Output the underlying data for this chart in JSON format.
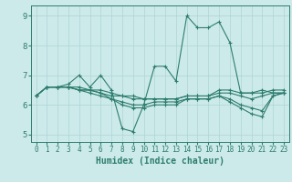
{
  "title": "",
  "xlabel": "Humidex (Indice chaleur)",
  "bg_color": "#cceaea",
  "line_color": "#2e7d6e",
  "grid_color": "#aed4d4",
  "xlim": [
    -0.5,
    23.5
  ],
  "ylim": [
    4.75,
    9.35
  ],
  "yticks": [
    5,
    6,
    7,
    8,
    9
  ],
  "xticks": [
    0,
    1,
    2,
    3,
    4,
    5,
    6,
    7,
    8,
    9,
    10,
    11,
    12,
    13,
    14,
    15,
    16,
    17,
    18,
    19,
    20,
    21,
    22,
    23
  ],
  "series": [
    [
      6.3,
      6.6,
      6.6,
      6.7,
      7.0,
      6.6,
      7.0,
      6.5,
      5.2,
      5.1,
      6.0,
      7.3,
      7.3,
      6.8,
      9.0,
      8.6,
      8.6,
      8.8,
      8.1,
      6.4,
      6.4,
      6.5,
      6.4,
      6.4
    ],
    [
      6.3,
      6.6,
      6.6,
      6.6,
      6.6,
      6.5,
      6.5,
      6.4,
      6.3,
      6.3,
      6.2,
      6.2,
      6.2,
      6.2,
      6.3,
      6.3,
      6.3,
      6.5,
      6.5,
      6.4,
      6.4,
      6.4,
      6.5,
      6.5
    ],
    [
      6.3,
      6.6,
      6.6,
      6.6,
      6.5,
      6.5,
      6.4,
      6.3,
      6.3,
      6.2,
      6.2,
      6.2,
      6.2,
      6.2,
      6.3,
      6.3,
      6.3,
      6.4,
      6.4,
      6.3,
      6.2,
      6.3,
      6.4,
      6.4
    ],
    [
      6.3,
      6.6,
      6.6,
      6.6,
      6.5,
      6.5,
      6.4,
      6.2,
      6.1,
      6.0,
      6.0,
      6.1,
      6.1,
      6.1,
      6.2,
      6.2,
      6.2,
      6.3,
      6.2,
      6.0,
      5.9,
      5.8,
      6.3,
      6.4
    ],
    [
      6.3,
      6.6,
      6.6,
      6.6,
      6.5,
      6.4,
      6.3,
      6.2,
      6.0,
      5.9,
      5.9,
      6.0,
      6.0,
      6.0,
      6.2,
      6.2,
      6.2,
      6.3,
      6.1,
      5.9,
      5.7,
      5.6,
      6.3,
      6.4
    ]
  ]
}
